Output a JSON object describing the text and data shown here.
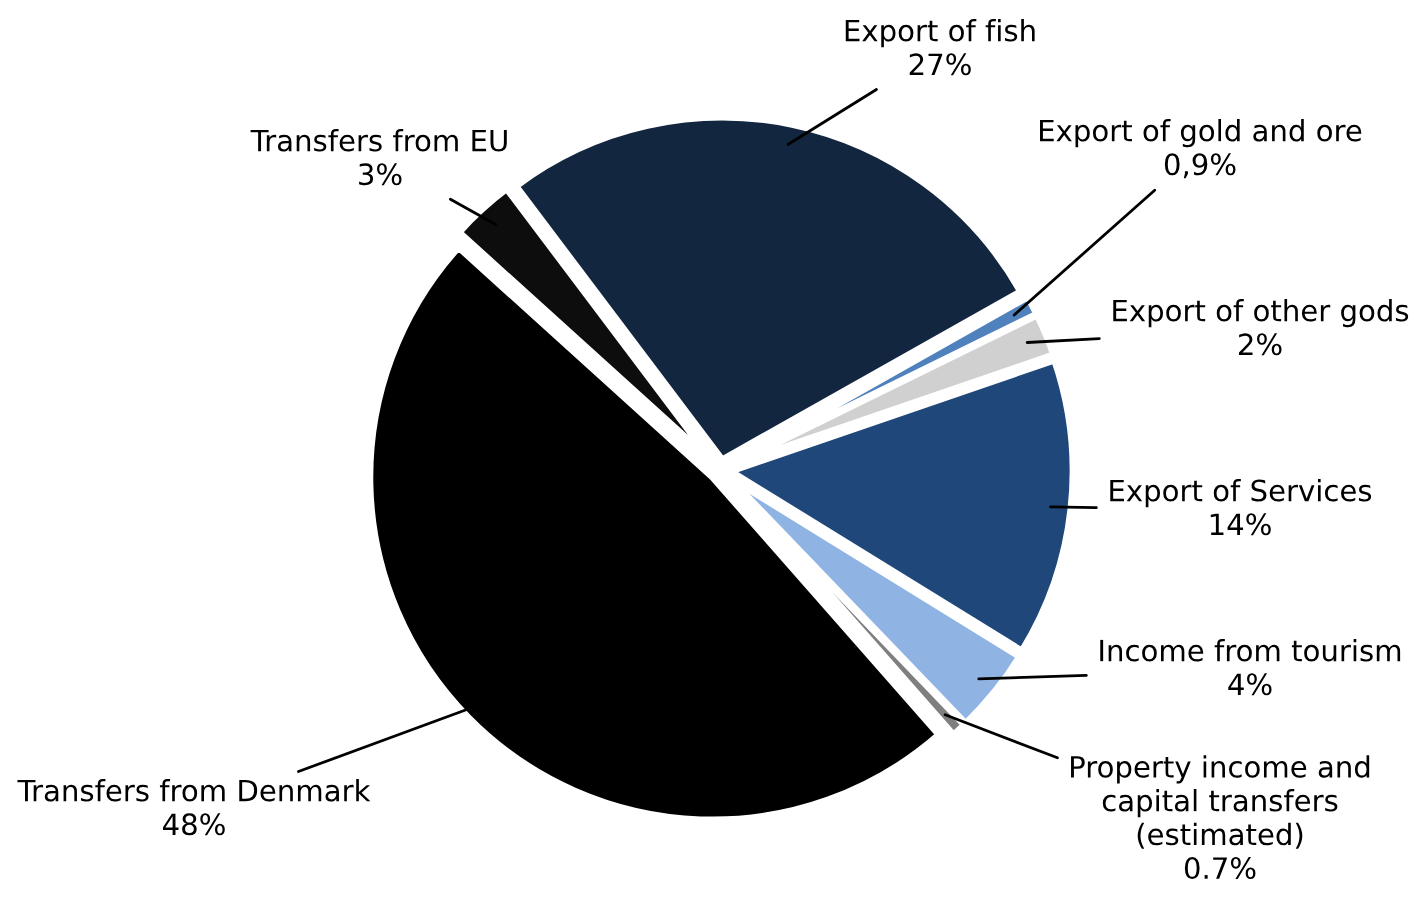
{
  "chart_data": {
    "type": "pie",
    "categories": [
      "Export of fish",
      "Export of gold and ore",
      "Export of other gods",
      "Export of Services",
      "Income from tourism",
      "Property income and\ncapital transfers\n(estimated)",
      "Transfers from Denmark",
      "Transfers from EU"
    ],
    "values": [
      27,
      0.9,
      2,
      14,
      4,
      0.7,
      48,
      3
    ],
    "value_labels": [
      "27%",
      "0,9%",
      "2%",
      "14%",
      "4%",
      "0.7%",
      "48%",
      "3%"
    ],
    "colors": [
      "#13263f",
      "#4f81bd",
      "#d0d0d0",
      "#1f477a",
      "#8fb4e3",
      "#7f7f7f",
      "#000000",
      "#0d0d0d"
    ],
    "legend": false
  }
}
